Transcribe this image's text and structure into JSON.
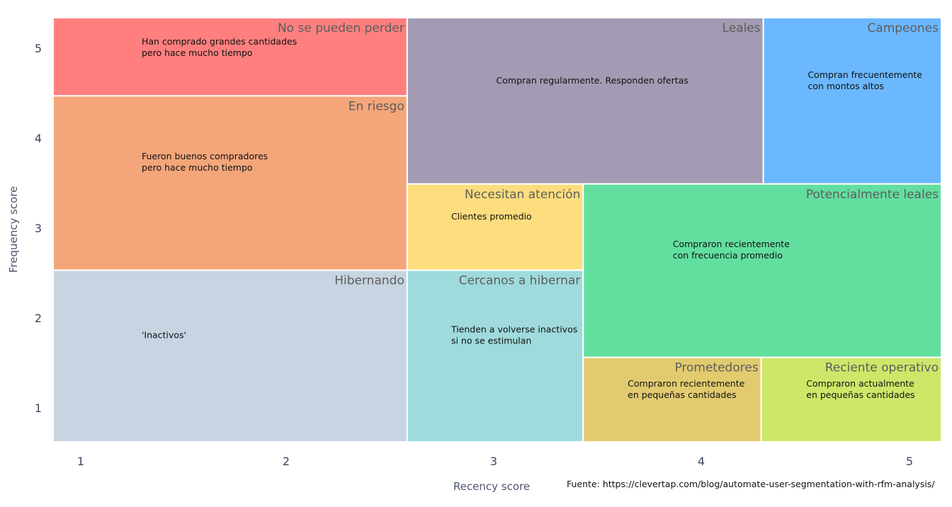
{
  "chart_data": {
    "type": "treemap",
    "xlabel": "Recency score",
    "ylabel": "Frequency score",
    "xlim": [
      0.87,
      5.16
    ],
    "ylim": [
      0.62,
      5.34
    ],
    "x_ticks": [
      1,
      2,
      3,
      4,
      5
    ],
    "y_ticks": [
      1,
      2,
      3,
      4,
      5
    ],
    "grid": false,
    "source": "Fuente: https://clevertap.com/blog/automate-user-segmentation-with-rfm-analysis/",
    "segments": [
      {
        "name": "No se pueden perder",
        "desc": [
          "Han comprado grandes cantidades",
          "pero hace mucho tiempo"
        ],
        "x": [
          0.87,
          2.58
        ],
        "y": [
          4.47,
          5.34
        ],
        "color": "#ff7f7f"
      },
      {
        "name": "En riesgo",
        "desc": [
          "Fueron buenos compradores",
          "pero hace mucho tiempo"
        ],
        "x": [
          0.87,
          2.58
        ],
        "y": [
          2.53,
          4.47
        ],
        "color": "#f4a67a"
      },
      {
        "name": "Hibernando",
        "desc": [
          "'Inactivos'"
        ],
        "x": [
          0.87,
          2.58
        ],
        "y": [
          0.62,
          2.53
        ],
        "color": "#c7d4e2"
      },
      {
        "name": "Leales",
        "desc": [
          "Compran regularmente. Responden ofertas"
        ],
        "x": [
          2.58,
          4.3
        ],
        "y": [
          3.49,
          5.34
        ],
        "color": "#a39bb3"
      },
      {
        "name": "Campeones",
        "desc": [
          "Compran frecuentemente",
          "con montos altos"
        ],
        "x": [
          4.3,
          5.16
        ],
        "y": [
          3.49,
          5.34
        ],
        "color": "#6bb8ff"
      },
      {
        "name": "Necesitan atención",
        "desc": [
          "Clientes promedio"
        ],
        "x": [
          2.58,
          3.43
        ],
        "y": [
          2.53,
          3.49
        ],
        "color": "#fddd7d"
      },
      {
        "name": "Cercanos a hibernar",
        "desc": [
          "Tienden a volverse inactivos",
          "si no se estimulan"
        ],
        "x": [
          2.58,
          3.43
        ],
        "y": [
          0.62,
          2.53
        ],
        "color": "#9fdbdc"
      },
      {
        "name": "Potencialmente leales",
        "desc": [
          "Compraron recientemente",
          "con frecuencia promedio"
        ],
        "x": [
          3.43,
          5.16
        ],
        "y": [
          1.56,
          3.49
        ],
        "color": "#62df9f"
      },
      {
        "name": "Prometedores",
        "desc": [
          "Compraron recientemente",
          "en pequeñas cantidades"
        ],
        "x": [
          3.43,
          4.29
        ],
        "y": [
          0.62,
          1.56
        ],
        "color": "#e2cb6f"
      },
      {
        "name": "Reciente operativo",
        "desc": [
          "Compraron actualmente",
          "en pequeñas cantidades"
        ],
        "x": [
          4.29,
          5.16
        ],
        "y": [
          0.62,
          1.56
        ],
        "color": "#cde769"
      }
    ]
  }
}
